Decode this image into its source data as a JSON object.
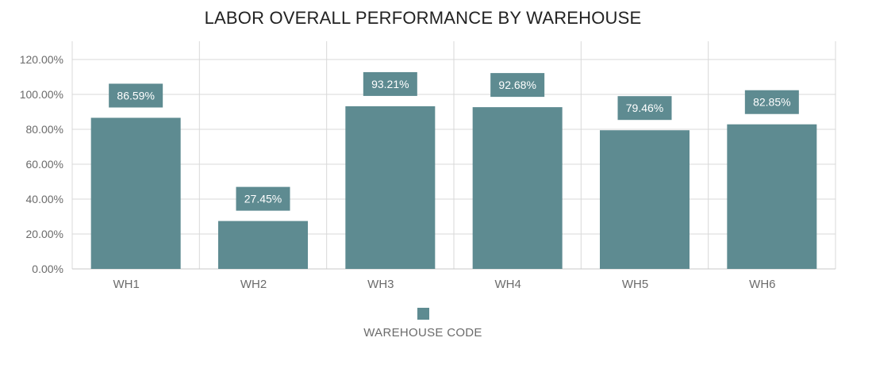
{
  "colors": {
    "bar": "#5e8b91",
    "label_box": "#5e8b91",
    "grid": "#d9d9d9",
    "text": "#6b6b6b"
  },
  "chart_data": {
    "type": "bar",
    "title": "LABOR OVERALL PERFORMANCE BY WAREHOUSE",
    "xlabel": "",
    "ylabel": "",
    "categories": [
      "WH1",
      "WH2",
      "WH3",
      "WH4",
      "WH5",
      "WH6"
    ],
    "series": [
      {
        "name": "WAREHOUSE CODE",
        "values": [
          86.59,
          27.45,
          93.21,
          92.68,
          79.46,
          82.85
        ],
        "labels": [
          "86.59%",
          "27.45%",
          "93.21%",
          "92.68%",
          "79.46%",
          "82.85%"
        ]
      }
    ],
    "ylim": [
      0,
      120
    ],
    "yticks": [
      0,
      20,
      40,
      60,
      80,
      100,
      120
    ],
    "ytick_labels": [
      "0.00%",
      "20.00%",
      "40.00%",
      "60.00%",
      "80.00%",
      "100.00%",
      "120.00%"
    ],
    "grid": true,
    "legend_position": "bottom"
  }
}
